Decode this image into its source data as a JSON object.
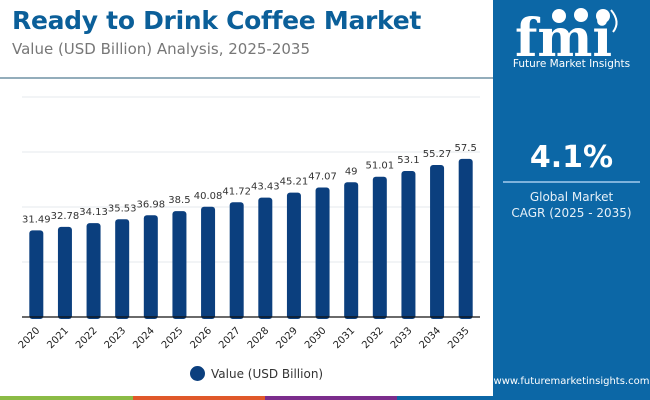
{
  "header": {
    "title": "Ready to Drink Coffee Market",
    "subtitle": "Value (USD Billion) Analysis, 2025-2035"
  },
  "sidebar": {
    "logo_letters": "fmi",
    "logo_text": "Future Market Insights",
    "cagr_value": "4.1%",
    "cagr_label_line1": "Global Market",
    "cagr_label_line2": "CAGR (2025 - 2035)",
    "website": "www.futuremarketinsights.com"
  },
  "colors": {
    "title": "#0b5f99",
    "bar": "#0b3f7e",
    "sidebar": "#0c67a6",
    "strip": [
      "#8bbb45",
      "#e0582a",
      "#7b2d8c",
      "#0c67a6"
    ]
  },
  "chart_data": {
    "type": "bar",
    "title": "Ready to Drink Coffee Market",
    "subtitle": "Value (USD Billion) Analysis, 2025-2035",
    "xlabel": "",
    "ylabel": "",
    "categories": [
      "2020",
      "2021",
      "2022",
      "2023",
      "2024",
      "2025",
      "2026",
      "2027",
      "2028",
      "2029",
      "2030",
      "2031",
      "2032",
      "2033",
      "2034",
      "2035"
    ],
    "series": [
      {
        "name": "Value (USD Billion)",
        "values": [
          31.49,
          32.78,
          34.13,
          35.53,
          36.98,
          38.5,
          40.08,
          41.72,
          43.43,
          45.21,
          47.07,
          49,
          51.01,
          53.1,
          55.27,
          57.5
        ],
        "labels": [
          "31.49",
          "32.78",
          "34.13",
          "35.53",
          "36.98",
          "38.5",
          "40.08",
          "41.72",
          "43.43",
          "45.21",
          "47.07",
          "49",
          "51.01",
          "53.1",
          "55.27",
          "57.5"
        ]
      }
    ],
    "ylim": [
      0,
      80
    ],
    "gridlines": [
      20,
      40,
      60,
      80
    ],
    "grid": true,
    "y_tick_labels_visible": false,
    "legend_position": "bottom-center"
  }
}
